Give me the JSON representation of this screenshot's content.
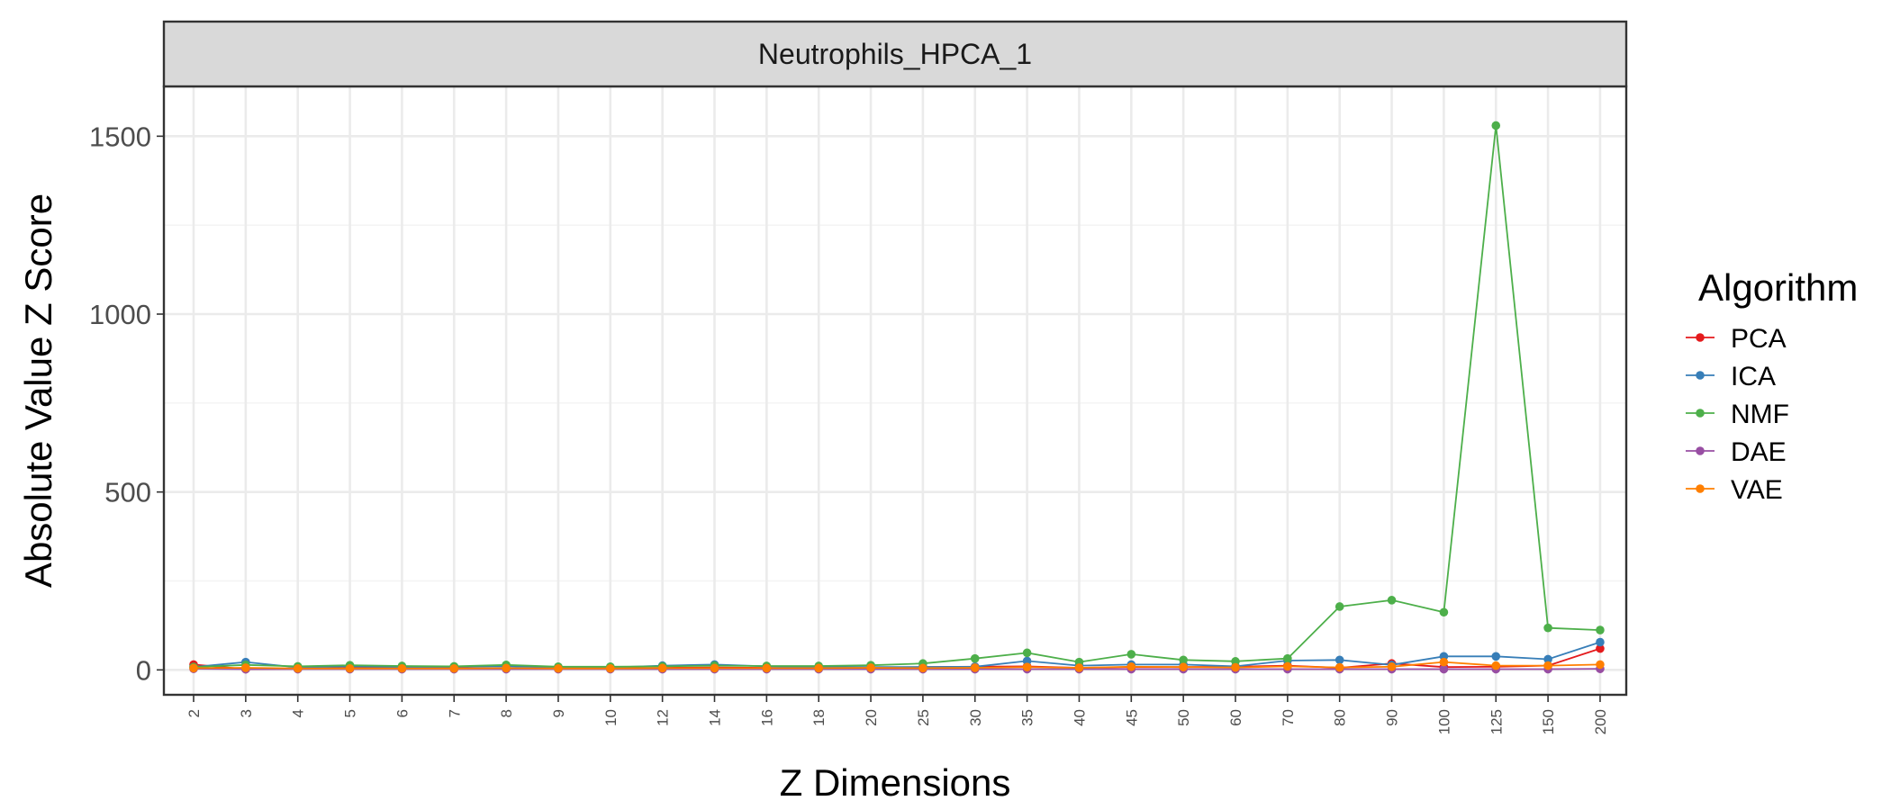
{
  "chart_data": {
    "type": "line",
    "facet_title": "Neutrophils_HPCA_1",
    "xlabel": "Z Dimensions",
    "ylabel": "Absolute Value Z Score",
    "x_scale": "categorical",
    "categories": [
      "2",
      "3",
      "4",
      "5",
      "6",
      "7",
      "8",
      "9",
      "10",
      "12",
      "14",
      "16",
      "18",
      "20",
      "25",
      "30",
      "35",
      "40",
      "45",
      "50",
      "60",
      "70",
      "80",
      "90",
      "100",
      "125",
      "150",
      "200"
    ],
    "ylim": [
      -70,
      1640
    ],
    "y_ticks": [
      0,
      500,
      1000,
      1500
    ],
    "grid": true,
    "legend": {
      "title": "Algorithm",
      "position": "right"
    },
    "series": [
      {
        "name": "PCA",
        "color": "#e41a1c",
        "values": [
          15,
          2,
          3,
          6,
          6,
          7,
          12,
          6,
          4,
          6,
          7,
          6,
          5,
          7,
          8,
          9,
          10,
          6,
          8,
          8,
          9,
          12,
          6,
          18,
          8,
          9,
          12,
          60
        ]
      },
      {
        "name": "ICA",
        "color": "#377eb8",
        "values": [
          8,
          22,
          7,
          10,
          8,
          9,
          10,
          7,
          7,
          12,
          15,
          10,
          8,
          8,
          8,
          9,
          25,
          12,
          15,
          15,
          10,
          26,
          28,
          14,
          38,
          38,
          30,
          78
        ]
      },
      {
        "name": "NMF",
        "color": "#4daf4a",
        "values": [
          8,
          14,
          10,
          13,
          11,
          10,
          14,
          9,
          9,
          10,
          12,
          11,
          11,
          13,
          18,
          32,
          48,
          22,
          44,
          28,
          24,
          32,
          178,
          196,
          162,
          1530,
          118,
          112
        ]
      },
      {
        "name": "DAE",
        "color": "#984ea3",
        "values": [
          3,
          2,
          2,
          2,
          2,
          2,
          2,
          2,
          2,
          2,
          2,
          2,
          2,
          2,
          2,
          2,
          2,
          2,
          2,
          2,
          2,
          2,
          2,
          2,
          2,
          2,
          2,
          3
        ]
      },
      {
        "name": "VAE",
        "color": "#ff7f00",
        "values": [
          5,
          6,
          4,
          4,
          4,
          4,
          5,
          4,
          4,
          5,
          5,
          5,
          5,
          6,
          5,
          6,
          8,
          6,
          9,
          8,
          7,
          10,
          7,
          9,
          22,
          12,
          12,
          15
        ]
      }
    ]
  }
}
